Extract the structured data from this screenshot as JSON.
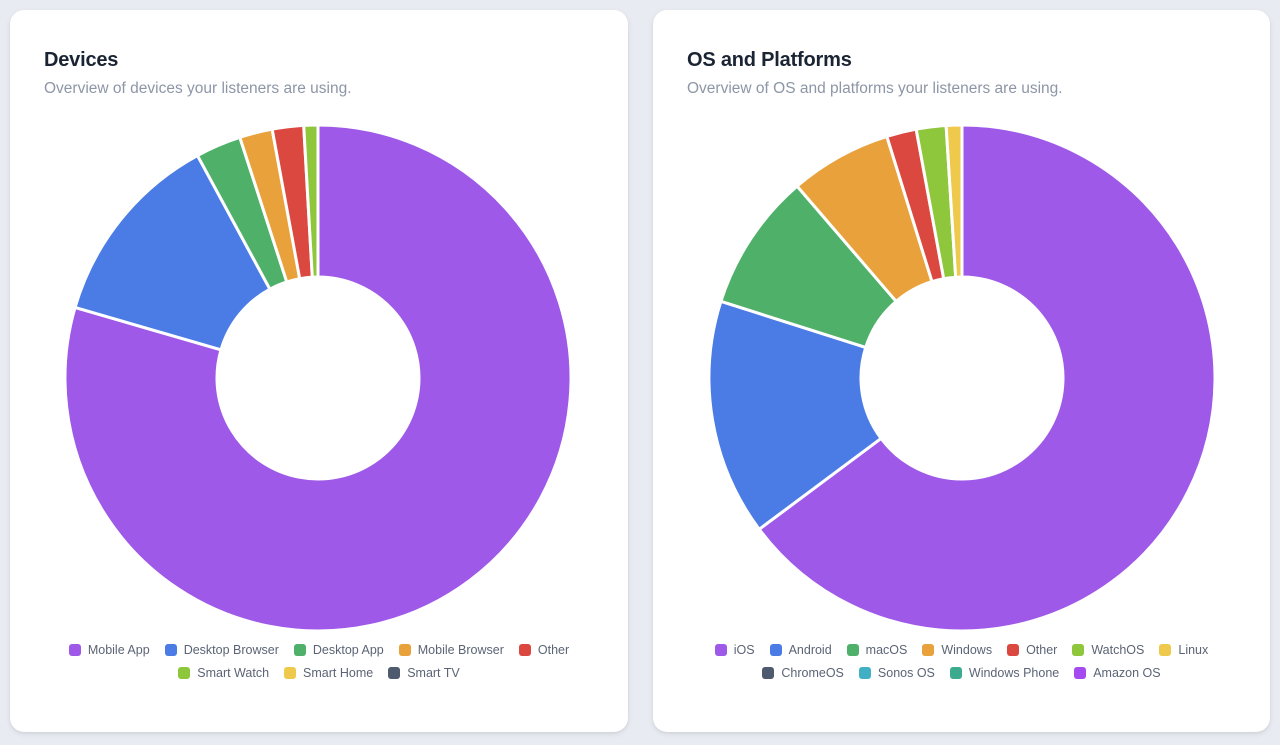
{
  "page": {
    "background_color": "#e8ebf1"
  },
  "cards": [
    {
      "title": "Devices",
      "subtitle": "Overview of devices your listeners are using."
    },
    {
      "title": "OS and Platforms",
      "subtitle": "Overview of OS and platforms your listeners are using."
    }
  ],
  "chart_data": [
    {
      "type": "pie",
      "variant": "donut",
      "title": "Devices",
      "legend_position": "bottom",
      "start_angle_deg": 0,
      "direction": "clockwise",
      "inner_radius_ratio": 0.4,
      "unit": "percent of listeners (estimated from arc angles)",
      "series": [
        {
          "name": "Mobile App",
          "value": 79.5,
          "color": "#9E59E8"
        },
        {
          "name": "Desktop Browser",
          "value": 12.6,
          "color": "#4B7CE5"
        },
        {
          "name": "Desktop App",
          "value": 2.9,
          "color": "#4FB06A"
        },
        {
          "name": "Mobile Browser",
          "value": 2.1,
          "color": "#E9A23B"
        },
        {
          "name": "Other",
          "value": 2.0,
          "color": "#DB4840"
        },
        {
          "name": "Smart Watch",
          "value": 0.9,
          "color": "#8FC73C"
        },
        {
          "name": "Smart Home",
          "value": 0.0,
          "color": "#EFC94C"
        },
        {
          "name": "Smart TV",
          "value": 0.0,
          "color": "#4E5A6E"
        }
      ]
    },
    {
      "type": "pie",
      "variant": "donut",
      "title": "OS and Platforms",
      "legend_position": "bottom",
      "start_angle_deg": 0,
      "direction": "clockwise",
      "inner_radius_ratio": 0.4,
      "unit": "percent of listeners (estimated from arc angles)",
      "series": [
        {
          "name": "iOS",
          "value": 64.8,
          "color": "#9E59E8"
        },
        {
          "name": "Android",
          "value": 15.1,
          "color": "#4B7CE5"
        },
        {
          "name": "macOS",
          "value": 8.8,
          "color": "#4FB06A"
        },
        {
          "name": "Windows",
          "value": 6.5,
          "color": "#E9A23B"
        },
        {
          "name": "Other",
          "value": 1.9,
          "color": "#DB4840"
        },
        {
          "name": "WatchOS",
          "value": 1.9,
          "color": "#8FC73C"
        },
        {
          "name": "Linux",
          "value": 1.0,
          "color": "#EFC94C"
        },
        {
          "name": "ChromeOS",
          "value": 0.0,
          "color": "#4E5A6E"
        },
        {
          "name": "Sonos OS",
          "value": 0.0,
          "color": "#41B0C4"
        },
        {
          "name": "Windows Phone",
          "value": 0.0,
          "color": "#3BAA8E"
        },
        {
          "name": "Amazon OS",
          "value": 0.0,
          "color": "#A34AF0"
        }
      ]
    }
  ]
}
